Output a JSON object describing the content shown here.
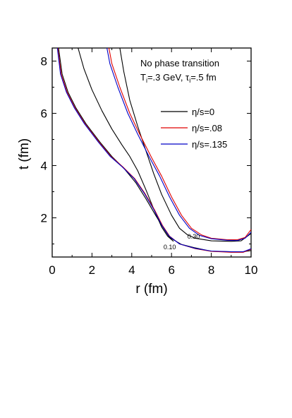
{
  "chart_data": {
    "type": "line",
    "xlabel": "r (fm)",
    "ylabel": "t (fm)",
    "xlim": [
      0,
      10
    ],
    "ylim": [
      0.5,
      8.5
    ],
    "x_ticks": [
      "0",
      "2",
      "4",
      "6",
      "8",
      "10"
    ],
    "y_ticks": [
      "2",
      "4",
      "6",
      "8"
    ],
    "grid": false,
    "legend_placement": "right",
    "annotations": {
      "line1": "No phase transition",
      "line2_prefix": "T",
      "line2_sub_i": "i",
      "line2_mid": "=.3 GeV, ",
      "line2_tau": "τ",
      "line2_sub_i2": "i",
      "line2_suffix": "=.5 fm"
    },
    "contour_labels": [
      "0.10",
      "0.30"
    ],
    "series": [
      {
        "name": "η/s=0",
        "color": "#000000",
        "curves": [
          {
            "contour": "0.10",
            "points": [
              [
                0.32,
                8.5
              ],
              [
                0.5,
                7.5
              ],
              [
                0.8,
                6.8
              ],
              [
                1.2,
                6.2
              ],
              [
                1.7,
                5.6
              ],
              [
                2.4,
                4.9
              ],
              [
                3.0,
                4.35
              ],
              [
                3.6,
                3.9
              ],
              [
                4.2,
                3.35
              ],
              [
                4.7,
                2.75
              ],
              [
                5.2,
                2.1
              ],
              [
                5.6,
                1.6
              ],
              [
                5.9,
                1.25
              ],
              [
                6.5,
                0.98
              ],
              [
                7.2,
                0.85
              ],
              [
                8.0,
                0.72
              ],
              [
                9.0,
                0.7
              ],
              [
                9.6,
                0.7
              ],
              [
                10.0,
                0.75
              ]
            ]
          },
          {
            "contour": "0.30",
            "points": [
              [
                3.4,
                8.5
              ],
              [
                3.6,
                7.6
              ],
              [
                3.9,
                6.5
              ],
              [
                4.3,
                5.5
              ],
              [
                4.7,
                4.6
              ],
              [
                5.1,
                3.7
              ],
              [
                5.5,
                2.9
              ],
              [
                6.0,
                2.1
              ],
              [
                6.4,
                1.6
              ],
              [
                6.8,
                1.35
              ],
              [
                7.2,
                1.22
              ],
              [
                8.0,
                1.12
              ],
              [
                9.0,
                1.1
              ],
              [
                9.5,
                1.12
              ],
              [
                10.0,
                1.4
              ]
            ]
          },
          {
            "contour": "",
            "points": [
              [
                1.3,
                8.5
              ],
              [
                1.6,
                7.7
              ],
              [
                2.0,
                6.9
              ],
              [
                2.5,
                6.1
              ],
              [
                3.0,
                5.4
              ],
              [
                3.5,
                4.8
              ],
              [
                3.9,
                4.35
              ],
              [
                4.3,
                3.8
              ],
              [
                4.7,
                3.1
              ],
              [
                5.1,
                2.35
              ],
              [
                5.5,
                1.65
              ],
              [
                5.8,
                1.3
              ],
              [
                6.1,
                1.1
              ]
            ]
          }
        ]
      },
      {
        "name": "η/s=.08",
        "color": "#e00000",
        "curves": [
          {
            "contour": "0.10",
            "points": [
              [
                0.28,
                8.5
              ],
              [
                0.45,
                7.5
              ],
              [
                0.75,
                6.8
              ],
              [
                1.15,
                6.2
              ],
              [
                1.65,
                5.6
              ],
              [
                2.35,
                4.9
              ],
              [
                2.95,
                4.35
              ],
              [
                3.55,
                3.95
              ],
              [
                4.15,
                3.5
              ],
              [
                4.65,
                2.95
              ],
              [
                5.15,
                2.3
              ],
              [
                5.55,
                1.7
              ],
              [
                5.9,
                1.3
              ],
              [
                6.4,
                1.0
              ],
              [
                7.2,
                0.82
              ],
              [
                8.0,
                0.72
              ],
              [
                9.0,
                0.68
              ],
              [
                9.6,
                0.68
              ],
              [
                10.0,
                0.8
              ]
            ]
          },
          {
            "contour": "0.30",
            "points": [
              [
                2.85,
                8.5
              ],
              [
                3.0,
                7.9
              ],
              [
                3.4,
                7.0
              ],
              [
                3.9,
                6.0
              ],
              [
                4.4,
                5.2
              ],
              [
                5.0,
                4.3
              ],
              [
                5.5,
                3.6
              ],
              [
                6.0,
                2.8
              ],
              [
                6.5,
                2.1
              ],
              [
                7.0,
                1.6
              ],
              [
                7.5,
                1.35
              ],
              [
                8.0,
                1.22
              ],
              [
                8.8,
                1.16
              ],
              [
                9.3,
                1.16
              ],
              [
                9.7,
                1.25
              ],
              [
                10.0,
                1.55
              ]
            ]
          }
        ]
      },
      {
        "name": "η/s=.135",
        "color": "#0000c8",
        "curves": [
          {
            "contour": "0.10",
            "points": [
              [
                0.26,
                8.5
              ],
              [
                0.42,
                7.5
              ],
              [
                0.72,
                6.8
              ],
              [
                1.12,
                6.2
              ],
              [
                1.62,
                5.6
              ],
              [
                2.32,
                4.9
              ],
              [
                2.92,
                4.35
              ],
              [
                3.52,
                3.95
              ],
              [
                4.12,
                3.5
              ],
              [
                4.62,
                2.95
              ],
              [
                5.12,
                2.3
              ],
              [
                5.52,
                1.7
              ],
              [
                5.88,
                1.3
              ],
              [
                6.4,
                1.0
              ],
              [
                7.2,
                0.83
              ],
              [
                8.0,
                0.73
              ],
              [
                9.0,
                0.7
              ],
              [
                9.6,
                0.7
              ],
              [
                10.0,
                0.82
              ]
            ]
          },
          {
            "contour": "0.30",
            "points": [
              [
                2.75,
                8.5
              ],
              [
                2.9,
                7.9
              ],
              [
                3.3,
                7.0
              ],
              [
                3.8,
                6.0
              ],
              [
                4.3,
                5.2
              ],
              [
                4.9,
                4.3
              ],
              [
                5.4,
                3.6
              ],
              [
                5.9,
                2.8
              ],
              [
                6.4,
                2.1
              ],
              [
                6.9,
                1.6
              ],
              [
                7.4,
                1.33
              ],
              [
                8.0,
                1.2
              ],
              [
                8.8,
                1.14
              ],
              [
                9.3,
                1.13
              ],
              [
                9.7,
                1.22
              ],
              [
                10.0,
                1.45
              ]
            ]
          }
        ]
      }
    ]
  }
}
